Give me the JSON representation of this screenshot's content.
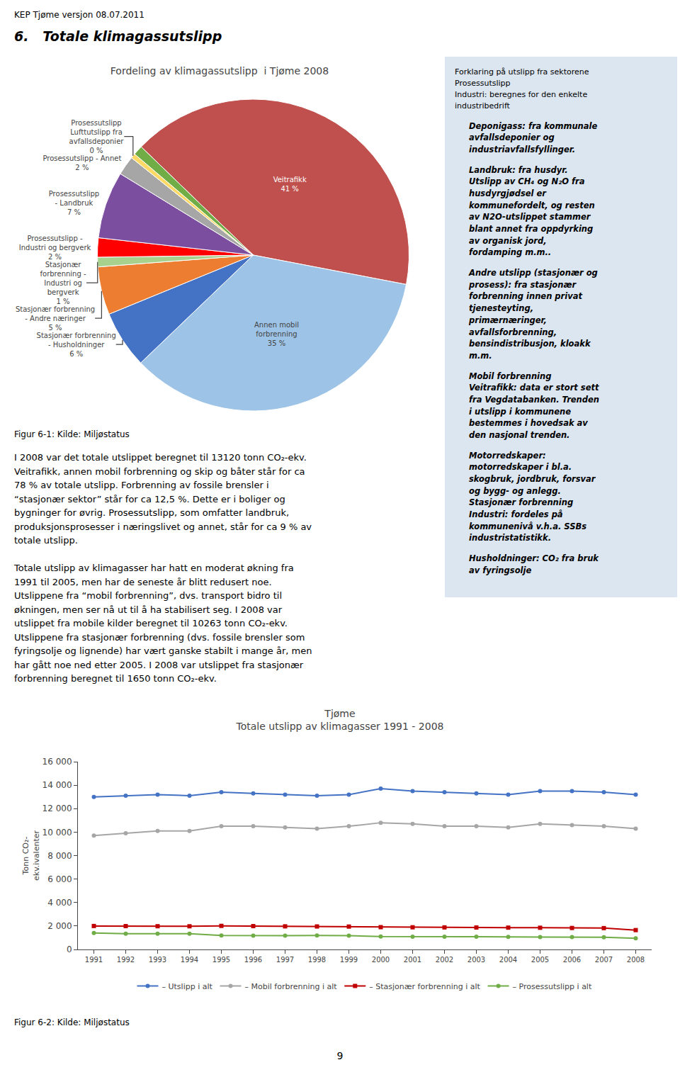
{
  "page": {
    "header": "KEP Tjøme versjon 08.07.2011",
    "section_title": "6.   Totale klimagassutslipp",
    "sidebar_title": "Forklaring på utslipp fra sektorene\nProsessutslipp\nIndustri: beregnes for den enkelte\nindustribedrift",
    "sidebar_text": [
      "Deponigass: fra kommunale\navfallsdeponier og\nindustriavfallsfyllinger.",
      "Landbruk: fra husdyr.\nUtslipp av CH₄ og N₂O fra\nhusdyrgjødsel er\nkommunefordelt, og resten\nav N2O-utslippet stammer\nblant annet fra oppdyrking\nav organisk jord,\nfordamping m.m..",
      "Andre utslipp (stasjonær og\nprosess): fra stasjonær\nforbrenning innen privat\ntjenesteyting,\nprimærnæringer,\navfallsforbrenning,\nbensindistribusjon, kloakk\nm.m.",
      "Mobil forbrenning\nVeitrafikk: data er stort sett\nfra Vegdatabanken. Trenden\ni utslipp i kommunene\nbestemmes i hovedsak av\nden nasjonal trenden.",
      "Motorredskaper:\nmotorredskaper i bl.a.\nskogbruk, jordbruk, forsvar\nog bygg- og anlegg.\nStasjonær forbrenning\nIndustri: fordeles på\nkommunenivå v.h.a. SSBs\nindustristatistikk.",
      "Husholdninger: CO₂ fra bruk\nav fyringsolje"
    ],
    "body_text": [
      "I 2008 var det totale utslippet beregnet til 13120 tonn CO₂-ekv.\nVeitrafikk, annen mobil forbrenning og skip og båter står for ca\n78 % av totale utslipp. Forbrenning av fossile brensler i\n“stasjonær sektor” står for ca 12,5 %. Dette er i boliger og\nbygninger for øvrig. Prosessutslipp, som omfatter landbruk,\nproduksjonsprosesser i næringslivet og annet, står for ca 9 % av\ntotale utslipp.",
      "Totale utslipp av klimagasser har hatt en moderat økning fra\n1991 til 2005, men har de seneste år blitt redusert noe.\nUtslippene fra “mobil forbrenning”, dvs. transport bidro til\nøkningen, men ser nå ut til å ha stabilisert seg. I 2008 var\nutslippet fra mobile kilder beregnet til 10263 tonn CO₂-ekv.\nUtslippene fra stasjonær forbrenning (dvs. fossile brensler som\nfyringsolje og lignende) har vært ganske stabilt i mange år, men\nhar gått noe ned etter 2005. I 2008 var utslippet fra stasjonær\nforbrenning beregnet til 1650 tonn CO₂-ekv."
    ],
    "page_number": "9",
    "background_color": "#ffffff",
    "sidebar_color": "#dce6f1"
  },
  "chart_data": [
    {
      "type": "pie",
      "title": "Fordeling av klimagassutslipp  i Tjøme 2008",
      "categories": [
        "Veitrafikk",
        "Annen mobil\nforbrenning",
        "Stasjonær forbrenning\n- Husholdninger",
        "Stasjonær forbrenning\n- Andre næringer",
        "Stasjonær\nforbrenning -\nIndustri og\nbergverk",
        "Prosessutslipp -\nIndustri og bergverk",
        "Prosessutslipp\n- Landbruk",
        "Prosessutslipp - Annet",
        "Prosessutslipp\nLufttutslipp fra\navfallsdeponier",
        null
      ],
      "values": [
        41,
        35,
        6,
        5,
        1,
        2,
        7,
        2,
        0.5,
        1
      ],
      "value_labels": [
        "41 %",
        "35 %",
        "6 %",
        "5 %",
        "1 %",
        "2 %",
        "7 %",
        "2 %",
        "0 %",
        null
      ],
      "data_labels": true,
      "colors": [
        "#c0504d",
        "#9dc3e6",
        "#4472c4",
        "#ed7d31",
        "#a9d18e",
        "#ff0000",
        "#7b4ea0",
        "#a6a6a6",
        "#ffd966",
        "#70ad47"
      ],
      "caption": "Figur 6-1: Kilde: Miljøstatus"
    },
    {
      "type": "line",
      "title": "Tjøme",
      "subtitle": "Totale utslipp av klimagasser 1991 - 2008",
      "y_label": "Tonn CO₂-\nekv.ivalenter",
      "x": [
        1991,
        1992,
        1993,
        1994,
        1995,
        1996,
        1997,
        1998,
        1999,
        2000,
        2001,
        2002,
        2003,
        2004,
        2005,
        2006,
        2007,
        2008
      ],
      "series": [
        {
          "name": "– Utslipp i alt",
          "color": "#4472c4",
          "marker": "circle",
          "values": [
            13000,
            13100,
            13200,
            13100,
            13400,
            13300,
            13200,
            13100,
            13200,
            13700,
            13500,
            13400,
            13300,
            13200,
            13500,
            13500,
            13400,
            13200
          ]
        },
        {
          "name": "– Mobil forbrenning i alt",
          "color": "#a6a6a6",
          "marker": "circle",
          "values": [
            9700,
            9900,
            10100,
            10100,
            10500,
            10500,
            10400,
            10300,
            10500,
            10800,
            10700,
            10500,
            10500,
            10400,
            10700,
            10600,
            10500,
            10300
          ]
        },
        {
          "name": "– Stasjonær forbrenning i alt",
          "color": "#c00000",
          "marker": "square",
          "values": [
            2000,
            1990,
            1980,
            1975,
            2010,
            1990,
            1970,
            1960,
            1950,
            1900,
            1890,
            1880,
            1870,
            1860,
            1850,
            1830,
            1820,
            1650
          ]
        },
        {
          "name": "– Prosessutslipp i alt",
          "color": "#70ad47",
          "marker": "circle",
          "values": [
            1400,
            1350,
            1350,
            1350,
            1200,
            1180,
            1180,
            1200,
            1180,
            1100,
            1080,
            1080,
            1080,
            1070,
            1060,
            1050,
            1040,
            950
          ]
        }
      ],
      "xlim": [
        1990.5,
        2008.5
      ],
      "xticks": [
        1991,
        1992,
        1993,
        1994,
        1995,
        1996,
        1997,
        1998,
        1999,
        2000,
        2001,
        2002,
        2003,
        2004,
        2005,
        2006,
        2007,
        2008
      ],
      "ylim": [
        0,
        16000
      ],
      "yticks": [
        0,
        {
          "value": 2000,
          "label": "2 000"
        },
        {
          "value": 4000,
          "label": "4 000"
        },
        {
          "value": 6000,
          "label": "6 000"
        },
        {
          "value": 8000,
          "label": "8 000"
        },
        {
          "value": 10000,
          "label": "10 000"
        },
        {
          "value": 12000,
          "label": "12 000"
        },
        {
          "value": 14000,
          "label": "14 000"
        },
        {
          "value": 16000,
          "label": "16 000"
        }
      ],
      "grid": false,
      "legend": "bottom",
      "caption": "Figur 6-2: Kilde: Miljøstatus"
    }
  ]
}
